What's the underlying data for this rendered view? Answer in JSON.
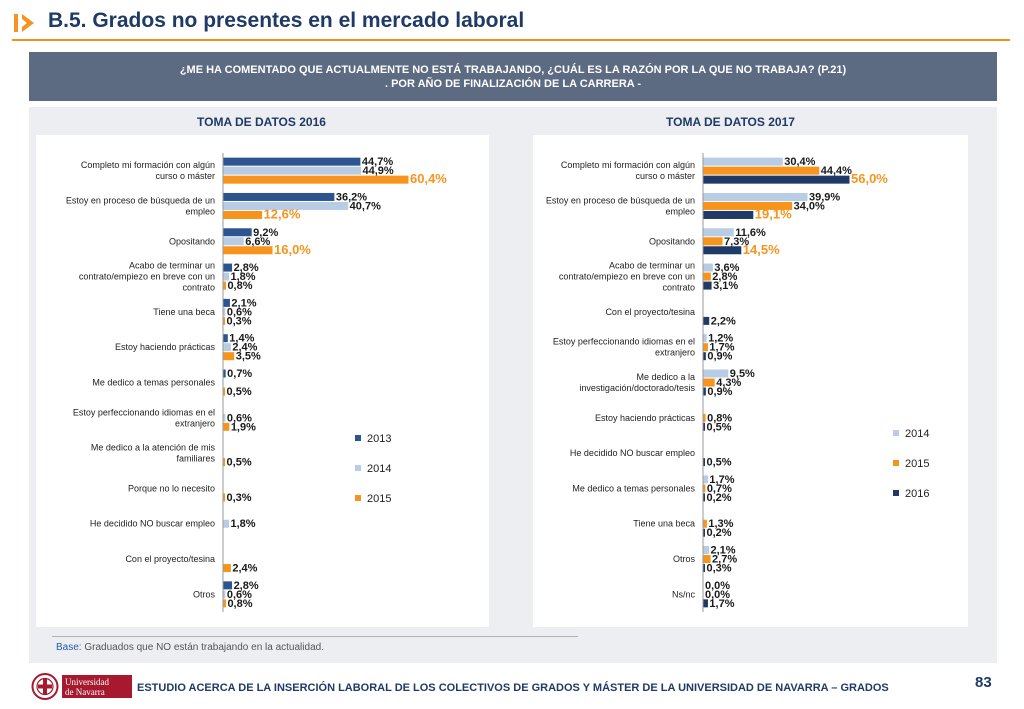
{
  "header": {
    "title": "B.5. Grados no presentes en el mercado laboral"
  },
  "question": {
    "line1": "¿ME HA COMENTADO QUE ACTUALMENTE NO ESTÁ TRABAJANDO, ¿CUÁL ES LA RAZÓN POR LA QUE NO TRABAJA? (P.21)",
    "line2": ". POR AÑO DE FINALIZACIÓN DE LA CARRERA -"
  },
  "colors": {
    "2013": "#2e5490",
    "2014": "#b8cce4",
    "2015": "#f7941d",
    "2016": "#1f3a66",
    "highlight_label": "#f7941d"
  },
  "chart_data": [
    {
      "type": "bar",
      "orientation": "horizontal",
      "title": "TOMA DE DATOS 2016",
      "legend": [
        "2013",
        "2014",
        "2015"
      ],
      "legend_position": "right",
      "categories": [
        "Completo mi formación con algún curso o máster",
        "Estoy en proceso de búsqueda de un empleo",
        "Opositando",
        "Acabo de terminar un contrato/empiezo en breve con un contrato",
        "Tiene una beca",
        "Estoy haciendo prácticas",
        "Me dedico a temas personales",
        "Estoy perfeccionando idiomas en el extranjero",
        "Me dedico a la atención de mis familiares",
        "Porque no lo necesito",
        "He decidido NO buscar empleo",
        "Con el proyecto/tesina",
        "Otros"
      ],
      "series": [
        {
          "name": "2013",
          "values": [
            44.7,
            36.2,
            9.2,
            2.8,
            2.1,
            1.4,
            0.7,
            null,
            null,
            null,
            null,
            null,
            2.8
          ],
          "labels": [
            "44,7%",
            "36,2%",
            "9,2%",
            "2,8%",
            "2,1%",
            "1,4%",
            "0,7%",
            "",
            "",
            "",
            "",
            "",
            "2,8%"
          ]
        },
        {
          "name": "2014",
          "values": [
            44.9,
            40.7,
            6.6,
            1.8,
            0.6,
            2.4,
            null,
            0.6,
            null,
            null,
            1.8,
            null,
            0.6
          ],
          "labels": [
            "44,9%",
            "40,7%",
            "6,6%",
            "1,8%",
            "0,6%",
            "2,4%",
            "",
            "0,6%",
            "",
            "",
            "1,8%",
            "",
            "0,6%"
          ]
        },
        {
          "name": "2015",
          "values": [
            60.4,
            12.6,
            16.0,
            0.8,
            0.3,
            3.5,
            0.5,
            1.9,
            0.5,
            0.3,
            null,
            2.4,
            0.8
          ],
          "labels": [
            "60,4%",
            "12,6%",
            "16,0%",
            "0,8%",
            "0,3%",
            "3,5%",
            "0,5%",
            "1,9%",
            "0,5%",
            "0,3%",
            "",
            "2,4%",
            "0,8%"
          ]
        }
      ]
    },
    {
      "type": "bar",
      "orientation": "horizontal",
      "title": "TOMA DE DATOS 2017",
      "legend": [
        "2014",
        "2015",
        "2016"
      ],
      "legend_position": "right",
      "categories": [
        "Completo mi formación con algún curso o máster",
        "Estoy en proceso de búsqueda de un empleo",
        "Opositando",
        "Acabo de terminar un contrato/empiezo en breve con un contrato",
        "Con el proyecto/tesina",
        "Estoy perfeccionando idiomas en el extranjero",
        "Me dedico a la investigación/doctorado/tesis",
        "Estoy haciendo prácticas",
        "He decidido NO buscar empleo",
        "Me dedico a temas personales",
        "Tiene una beca",
        "Otros",
        "Ns/nc"
      ],
      "series": [
        {
          "name": "2014",
          "values": [
            30.4,
            39.9,
            11.6,
            3.6,
            null,
            1.2,
            9.5,
            null,
            null,
            1.7,
            null,
            2.1,
            0.0
          ],
          "labels": [
            "30,4%",
            "39,9%",
            "11,6%",
            "3,6%",
            "",
            "1,2%",
            "9,5%",
            "",
            "",
            "1,7%",
            "",
            "2,1%",
            "0,0%"
          ]
        },
        {
          "name": "2015",
          "values": [
            44.4,
            34.0,
            7.3,
            2.8,
            null,
            1.7,
            4.3,
            0.8,
            null,
            0.7,
            1.3,
            2.7,
            0.0
          ],
          "labels": [
            "44,4%",
            "34,0%",
            "7,3%",
            "2,8%",
            "",
            "1,7%",
            "4,3%",
            "0,8%",
            "",
            "0,7%",
            "1,3%",
            "2,7%",
            "0,0%"
          ]
        },
        {
          "name": "2016",
          "values": [
            56.0,
            19.1,
            14.5,
            3.1,
            2.2,
            0.9,
            0.9,
            0.5,
            0.5,
            0.2,
            0.2,
            0.3,
            1.7
          ],
          "labels": [
            "56,0%",
            "19,1%",
            "14,5%",
            "3,1%",
            "2,2%",
            "0,9%",
            "0,9%",
            "0,5%",
            "0,5%",
            "0,2%",
            "0,2%",
            "0,3%",
            "1,7%"
          ]
        }
      ]
    }
  ],
  "base_note": {
    "label": "Base:",
    "text": " Graduados que NO están trabajando en la actualidad."
  },
  "footer": {
    "logo_text": "Universidad de Navarra",
    "title": "ESTUDIO ACERCA DE LA INSERCIÓN LABORAL DE LOS COLECTIVOS DE GRADOS Y MÁSTER DE LA UNIVERSIDAD DE NAVARRA – GRADOS",
    "page_number": "83"
  }
}
